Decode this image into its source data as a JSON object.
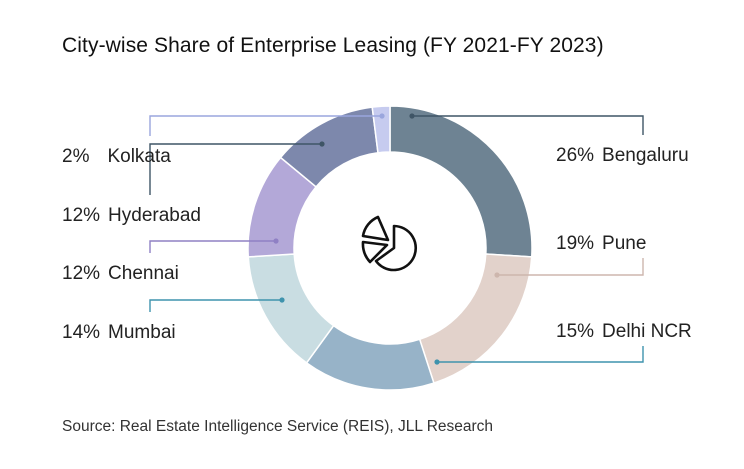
{
  "title": "City-wise Share of Enterprise Leasing (FY 2021-FY 2023)",
  "source": "Source: Real Estate Intelligence Service (REIS), JLL Research",
  "chart_data": {
    "type": "pie",
    "title": "City-wise Share of Enterprise Leasing (FY 2021-FY 2023)",
    "style": "donut",
    "center_icon": "pie-chart-icon",
    "slices": [
      {
        "name": "Bengaluru",
        "value": 26,
        "label": "26%",
        "color": "#6e8393"
      },
      {
        "name": "Pune",
        "value": 19,
        "label": "19%",
        "color": "#e2d2cb"
      },
      {
        "name": "Delhi NCR",
        "value": 15,
        "label": "15%",
        "color": "#97b3c8"
      },
      {
        "name": "Mumbai",
        "value": 14,
        "label": "14%",
        "color": "#c9dde2"
      },
      {
        "name": "Chennai",
        "value": 12,
        "label": "12%",
        "color": "#b3a8d8"
      },
      {
        "name": "Hyderabad",
        "value": 12,
        "label": "12%",
        "color": "#7d88ac"
      },
      {
        "name": "Kolkata",
        "value": 2,
        "label": "2%",
        "color": "#c6cbef"
      }
    ],
    "leader_colors": {
      "Bengaluru": "#3f5566",
      "Pune": "#cdb6ad",
      "Delhi NCR": "#3f93ad",
      "Mumbai": "#3f93ad",
      "Chennai": "#8f80c4",
      "Hyderabad": "#3f5566",
      "Kolkata": "#9aa6dd"
    }
  }
}
